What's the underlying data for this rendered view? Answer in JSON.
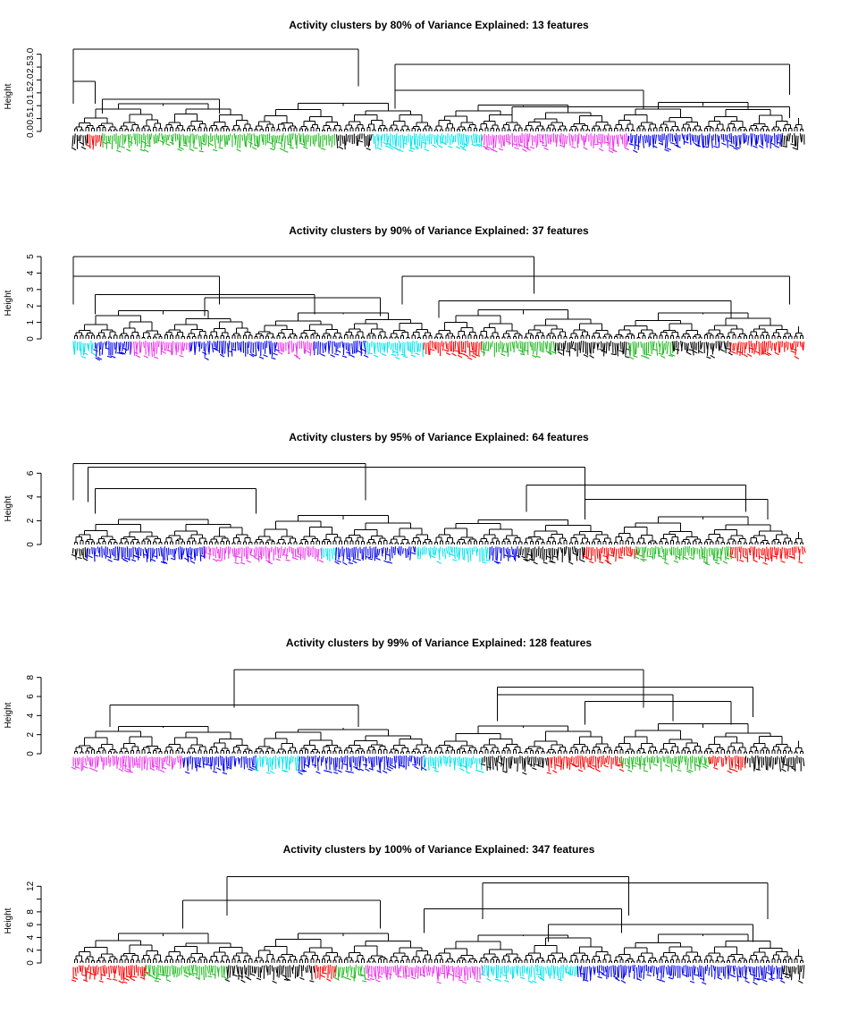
{
  "figure": {
    "colors": {
      "red": "#ff0000",
      "green": "#22bb22",
      "black": "#000000",
      "cyan": "#00e5ee",
      "magenta": "#ee33ee",
      "blue": "#0000ee"
    }
  },
  "chart_data": [
    {
      "type": "dendrogram",
      "title": "Activity clusters by 80% of Variance Explained: 13 features",
      "ylabel": "Height",
      "ylim": [
        0,
        3.3
      ],
      "yticks": [
        0,
        0.5,
        1,
        1.5,
        2,
        2.5,
        3
      ],
      "ytick_labels": [
        "0.0",
        "0.5",
        "1.0",
        "1.5",
        "2.0",
        "2.5",
        "3.0"
      ],
      "root_height": 3.2,
      "top_merges": [
        {
          "from": 0.0,
          "to": 0.39,
          "height": 3.2
        },
        {
          "from": 0.0,
          "to": 0.03,
          "height": 1.95
        },
        {
          "from": 0.04,
          "to": 0.2,
          "height": 1.25
        },
        {
          "from": 0.44,
          "to": 0.98,
          "height": 2.6
        },
        {
          "from": 0.44,
          "to": 0.78,
          "height": 1.6
        },
        {
          "from": 0.6,
          "to": 0.98,
          "height": 0.95
        }
      ],
      "cluster_bands": [
        {
          "color": "black",
          "from": 0.0,
          "to": 0.02
        },
        {
          "color": "red",
          "from": 0.02,
          "to": 0.04
        },
        {
          "color": "green",
          "from": 0.04,
          "to": 0.36
        },
        {
          "color": "black",
          "from": 0.36,
          "to": 0.41
        },
        {
          "color": "cyan",
          "from": 0.41,
          "to": 0.56
        },
        {
          "color": "magenta",
          "from": 0.56,
          "to": 0.76
        },
        {
          "color": "blue",
          "from": 0.76,
          "to": 0.97
        },
        {
          "color": "black",
          "from": 0.97,
          "to": 1.0
        }
      ]
    },
    {
      "type": "dendrogram",
      "title": "Activity clusters by 90% of Variance Explained: 37 features",
      "ylabel": "Height",
      "ylim": [
        0,
        5
      ],
      "yticks": [
        0,
        1,
        2,
        3,
        4,
        5
      ],
      "ytick_labels": [
        "0",
        "1",
        "2",
        "3",
        "4",
        "5"
      ],
      "root_height": 5.0,
      "top_merges": [
        {
          "from": 0.0,
          "to": 0.63,
          "height": 5.0
        },
        {
          "from": 0.0,
          "to": 0.2,
          "height": 3.8
        },
        {
          "from": 0.03,
          "to": 0.33,
          "height": 2.7
        },
        {
          "from": 0.18,
          "to": 0.42,
          "height": 2.5
        },
        {
          "from": 0.45,
          "to": 0.98,
          "height": 3.8
        },
        {
          "from": 0.5,
          "to": 0.9,
          "height": 2.3
        }
      ],
      "cluster_bands": [
        {
          "color": "cyan",
          "from": 0.0,
          "to": 0.03
        },
        {
          "color": "blue",
          "from": 0.03,
          "to": 0.08
        },
        {
          "color": "magenta",
          "from": 0.08,
          "to": 0.16
        },
        {
          "color": "blue",
          "from": 0.16,
          "to": 0.28
        },
        {
          "color": "magenta",
          "from": 0.28,
          "to": 0.33
        },
        {
          "color": "blue",
          "from": 0.33,
          "to": 0.4
        },
        {
          "color": "cyan",
          "from": 0.4,
          "to": 0.48
        },
        {
          "color": "red",
          "from": 0.48,
          "to": 0.56
        },
        {
          "color": "green",
          "from": 0.56,
          "to": 0.66
        },
        {
          "color": "black",
          "from": 0.66,
          "to": 0.76
        },
        {
          "color": "green",
          "from": 0.76,
          "to": 0.82
        },
        {
          "color": "black",
          "from": 0.82,
          "to": 0.9
        },
        {
          "color": "red",
          "from": 0.9,
          "to": 1.0
        }
      ]
    },
    {
      "type": "dendrogram",
      "title": "Activity clusters by 95% of Variance Explained: 64 features",
      "ylabel": "Height",
      "ylim": [
        0,
        7
      ],
      "yticks": [
        0,
        2,
        4,
        6
      ],
      "ytick_labels": [
        "0",
        "2",
        "4",
        "6"
      ],
      "root_height": 6.8,
      "top_merges": [
        {
          "from": 0.0,
          "to": 0.4,
          "height": 6.8
        },
        {
          "from": 0.02,
          "to": 0.7,
          "height": 6.5
        },
        {
          "from": 0.03,
          "to": 0.25,
          "height": 4.7
        },
        {
          "from": 0.62,
          "to": 0.92,
          "height": 5.0
        },
        {
          "from": 0.7,
          "to": 0.95,
          "height": 3.8
        }
      ],
      "cluster_bands": [
        {
          "color": "black",
          "from": 0.0,
          "to": 0.02
        },
        {
          "color": "blue",
          "from": 0.02,
          "to": 0.18
        },
        {
          "color": "magenta",
          "from": 0.18,
          "to": 0.34
        },
        {
          "color": "cyan",
          "from": 0.34,
          "to": 0.36
        },
        {
          "color": "blue",
          "from": 0.36,
          "to": 0.47
        },
        {
          "color": "cyan",
          "from": 0.47,
          "to": 0.57
        },
        {
          "color": "blue",
          "from": 0.57,
          "to": 0.61
        },
        {
          "color": "black",
          "from": 0.61,
          "to": 0.7
        },
        {
          "color": "red",
          "from": 0.7,
          "to": 0.77
        },
        {
          "color": "green",
          "from": 0.77,
          "to": 0.9
        },
        {
          "color": "red",
          "from": 0.9,
          "to": 1.0
        }
      ]
    },
    {
      "type": "dendrogram",
      "title": "Activity clusters by 99% of Variance Explained: 128 features",
      "ylabel": "Height",
      "ylim": [
        0,
        9
      ],
      "yticks": [
        0,
        2,
        4,
        6,
        8
      ],
      "ytick_labels": [
        "0",
        "2",
        "4",
        "6",
        "8"
      ],
      "root_height": 8.8,
      "top_merges": [
        {
          "from": 0.22,
          "to": 0.78,
          "height": 8.8
        },
        {
          "from": 0.05,
          "to": 0.39,
          "height": 5.1
        },
        {
          "from": 0.58,
          "to": 0.93,
          "height": 7.0
        },
        {
          "from": 0.58,
          "to": 0.82,
          "height": 6.2
        },
        {
          "from": 0.7,
          "to": 0.9,
          "height": 5.5
        }
      ],
      "cluster_bands": [
        {
          "color": "magenta",
          "from": 0.0,
          "to": 0.15
        },
        {
          "color": "blue",
          "from": 0.15,
          "to": 0.25
        },
        {
          "color": "cyan",
          "from": 0.25,
          "to": 0.31
        },
        {
          "color": "blue",
          "from": 0.31,
          "to": 0.48
        },
        {
          "color": "cyan",
          "from": 0.48,
          "to": 0.56
        },
        {
          "color": "black",
          "from": 0.56,
          "to": 0.65
        },
        {
          "color": "red",
          "from": 0.65,
          "to": 0.75
        },
        {
          "color": "green",
          "from": 0.75,
          "to": 0.87
        },
        {
          "color": "red",
          "from": 0.87,
          "to": 0.92
        },
        {
          "color": "black",
          "from": 0.92,
          "to": 1.0
        }
      ]
    },
    {
      "type": "dendrogram",
      "title": "Activity clusters by 100% of Variance Explained: 347 features",
      "ylabel": "Height",
      "ylim": [
        0,
        14
      ],
      "yticks": [
        0,
        2,
        4,
        6,
        8,
        10,
        12
      ],
      "ytick_labels": [
        "0",
        "2",
        "4",
        "6",
        "8",
        "",
        "12"
      ],
      "root_height": 13.5,
      "top_merges": [
        {
          "from": 0.21,
          "to": 0.76,
          "height": 13.5
        },
        {
          "from": 0.15,
          "to": 0.42,
          "height": 9.8
        },
        {
          "from": 0.56,
          "to": 0.95,
          "height": 12.5
        },
        {
          "from": 0.48,
          "to": 0.75,
          "height": 8.5
        },
        {
          "from": 0.65,
          "to": 0.93,
          "height": 6.0
        }
      ],
      "cluster_bands": [
        {
          "color": "red",
          "from": 0.0,
          "to": 0.1
        },
        {
          "color": "green",
          "from": 0.1,
          "to": 0.21
        },
        {
          "color": "black",
          "from": 0.21,
          "to": 0.33
        },
        {
          "color": "red",
          "from": 0.33,
          "to": 0.36
        },
        {
          "color": "green",
          "from": 0.36,
          "to": 0.4
        },
        {
          "color": "magenta",
          "from": 0.4,
          "to": 0.56
        },
        {
          "color": "cyan",
          "from": 0.56,
          "to": 0.69
        },
        {
          "color": "blue",
          "from": 0.69,
          "to": 0.97
        },
        {
          "color": "black",
          "from": 0.97,
          "to": 1.0
        }
      ]
    }
  ]
}
